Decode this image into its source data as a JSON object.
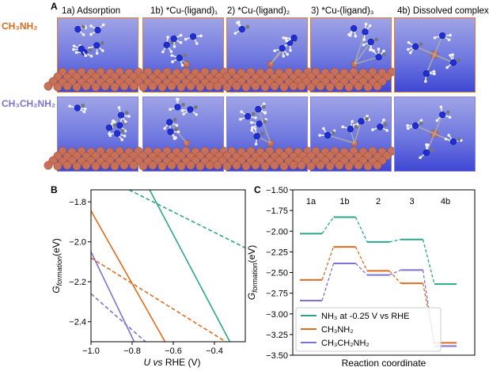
{
  "figure": {
    "panel_a": {
      "letter": "A",
      "columns": [
        "1a) Adsorption",
        "1b) *Cu-(ligand)₁",
        "2) *Cu-(ligand)₂",
        "3) *Cu-(ligand)₃",
        "4b) Dissolved complex"
      ],
      "row1": "CH₃NH₂",
      "row2": "CH₃CH₂NH₂",
      "colors": {
        "row1": "#e06b1f",
        "row2": "#7c73d0",
        "background_top": "#9fa4e6",
        "background_bottom": "#3f47d4",
        "copper": "#c8705a"
      }
    },
    "panel_b": {
      "letter": "B"
    },
    "panel_c": {
      "letter": "C"
    }
  },
  "chart_data": [
    {
      "type": "line",
      "panel": "B",
      "xlabel": "U vs RHE (V)",
      "ylabel": "G_formation(eV)",
      "xlim": [
        -1.0,
        -0.25
      ],
      "ylim": [
        -2.5,
        -1.74
      ],
      "xticks": [
        -1.0,
        -0.8,
        -0.6,
        -0.4
      ],
      "yticks": [
        -2.4,
        -2.2,
        -2.0,
        -1.8
      ],
      "xtick_labels": [
        "−1.0",
        "−0.8",
        "−0.6",
        "−0.4"
      ],
      "ytick_labels": [
        "−2.4",
        "−2.2",
        "−2.0",
        "−1.8"
      ],
      "series": [
        {
          "name": "NH3 solid",
          "color": "#2ca58d",
          "dash": false,
          "x": [
            -0.715,
            -0.325
          ],
          "y": [
            -1.74,
            -2.5
          ]
        },
        {
          "name": "NH3 dashed",
          "color": "#2ca58d",
          "dash": true,
          "x": [
            -0.815,
            -0.25
          ],
          "y": [
            -1.74,
            -2.03
          ]
        },
        {
          "name": "CH3NH2 solid",
          "color": "#e06b1f",
          "dash": false,
          "x": [
            -1.0,
            -0.64
          ],
          "y": [
            -1.845,
            -2.5
          ]
        },
        {
          "name": "CH3NH2 dashed",
          "color": "#e06b1f",
          "dash": true,
          "x": [
            -1.0,
            -0.345
          ],
          "y": [
            -2.08,
            -2.5
          ]
        },
        {
          "name": "CH3CH2NH2 solid",
          "color": "#7c73d0",
          "dash": false,
          "x": [
            -1.0,
            -0.79
          ],
          "y": [
            -2.05,
            -2.5
          ]
        },
        {
          "name": "CH3CH2NH2 dashed",
          "color": "#7c73d0",
          "dash": true,
          "x": [
            -1.0,
            -0.735
          ],
          "y": [
            -2.26,
            -2.5
          ]
        }
      ]
    },
    {
      "type": "line",
      "panel": "C",
      "xlabel": "Reaction coordinate",
      "ylabel": "G_formation(eV)",
      "ylim": [
        -3.5,
        -1.5
      ],
      "yticks": [
        -3.5,
        -3.25,
        -3.0,
        -2.75,
        -2.5,
        -2.25,
        -2.0,
        -1.75,
        -1.5
      ],
      "ytick_labels": [
        "−3.50",
        "−3.25",
        "−3.00",
        "−2.75",
        "−2.50",
        "−2.25",
        "−2.00",
        "−1.75",
        "−1.50"
      ],
      "categories": [
        "1a",
        "1b",
        "2",
        "3",
        "4b"
      ],
      "series": [
        {
          "name": "NH₃ at -0.25 V vs RHE",
          "color": "#2ca58d",
          "values": [
            -2.03,
            -1.83,
            -2.13,
            -2.1,
            -2.64
          ]
        },
        {
          "name": "CH₃NH₂",
          "color": "#e06b1f",
          "values": [
            -2.59,
            -2.19,
            -2.48,
            -2.63,
            -3.35
          ]
        },
        {
          "name": "CH₃CH₂NH₂",
          "color": "#7c73d0",
          "values": [
            -2.84,
            -2.39,
            -2.53,
            -2.47,
            -3.39
          ]
        }
      ],
      "legend_position": "bottom-left"
    }
  ]
}
